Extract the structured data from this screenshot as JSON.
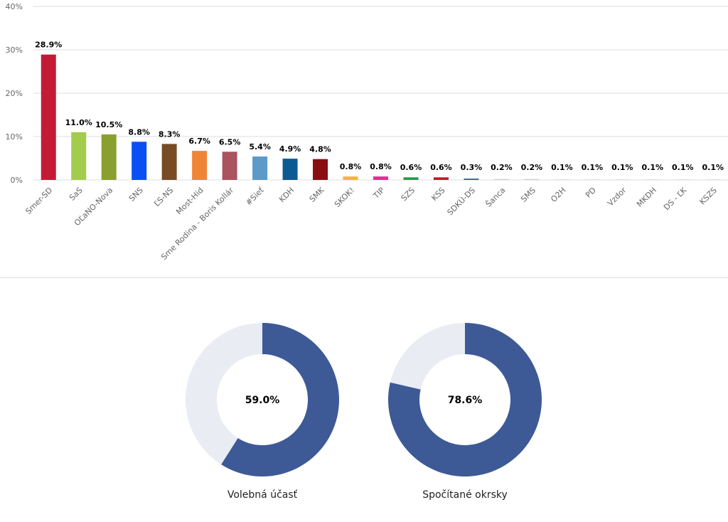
{
  "chart_data": [
    {
      "type": "bar",
      "categories": [
        "Smer-SD",
        "SaS",
        "OĽaNO-Nova",
        "SNS",
        "ĽS-NS",
        "Most-Hid",
        "Sme Rodina - Boris Kollár",
        "#Sieť",
        "KDH",
        "SMK",
        "SKOK!",
        "TIP",
        "SZS",
        "KSS",
        "SDKÚ-DS",
        "Šanca",
        "SMS",
        "O2H",
        "PD",
        "Vzdor",
        "MKDH",
        "DS - ĽK",
        "KSZS"
      ],
      "values": [
        28.9,
        11.0,
        10.5,
        8.8,
        8.3,
        6.7,
        6.5,
        5.4,
        4.9,
        4.8,
        0.8,
        0.8,
        0.6,
        0.6,
        0.3,
        0.2,
        0.2,
        0.1,
        0.1,
        0.1,
        0.1,
        0.1,
        0.1
      ],
      "value_labels": [
        "28.9%",
        "11.0%",
        "10.5%",
        "8.8%",
        "8.3%",
        "6.7%",
        "6.5%",
        "5.4%",
        "4.9%",
        "4.8%",
        "0.8%",
        "0.8%",
        "0.6%",
        "0.6%",
        "0.3%",
        "0.2%",
        "0.2%",
        "0.1%",
        "0.1%",
        "0.1%",
        "0.1%",
        "0.1%",
        "0.1%"
      ],
      "colors": [
        "#c41a36",
        "#a3cc4c",
        "#8aa02e",
        "#0a4ff5",
        "#784b25",
        "#f08537",
        "#a9545e",
        "#5b9ac9",
        "#0b5a92",
        "#8a0d12",
        "#f2b53e",
        "#e82c95",
        "#1aa24a",
        "#c8172b",
        "#3a5aa0",
        "#cccccc",
        "#cccccc",
        "#cccccc",
        "#cccccc",
        "#cccccc",
        "#cccccc",
        "#cccccc",
        "#cccccc"
      ],
      "y_ticks": [
        0,
        10,
        20,
        30,
        40
      ],
      "y_tick_labels": [
        "0%",
        "10%",
        "20%",
        "30%",
        "40%"
      ],
      "ylim": [
        0,
        40
      ],
      "grid": true
    },
    {
      "type": "pie",
      "variant": "donut",
      "value": 59.0,
      "center_label": "59.0%",
      "caption": "Volebná účasť",
      "fill_color": "#3d5a96",
      "rest_color": "#e9edf3"
    },
    {
      "type": "pie",
      "variant": "donut",
      "value": 78.6,
      "center_label": "78.6%",
      "caption": "Spočítané okrsky",
      "fill_color": "#3d5a96",
      "rest_color": "#e9edf3"
    }
  ]
}
